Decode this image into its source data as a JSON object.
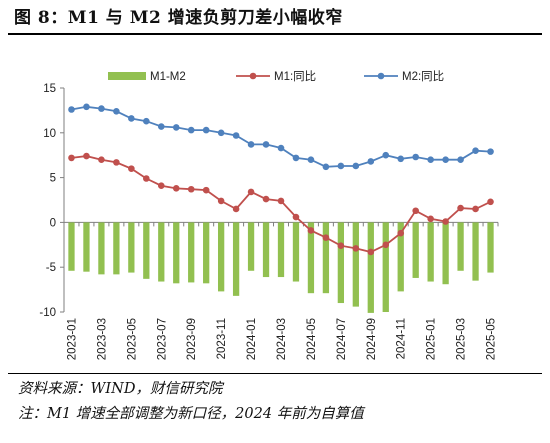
{
  "figure": {
    "title": "图 8：M1 与 M2 增速负剪刀差小幅收窄",
    "source": "资料来源：WIND，财信研究院",
    "footnote": "注：M1 增速全部调整为新口径，2024 年前为自算值"
  },
  "chart_data": {
    "type": "bar+line",
    "categories": [
      "2023-01",
      "2023-02",
      "2023-03",
      "2023-04",
      "2023-05",
      "2023-06",
      "2023-07",
      "2023-08",
      "2023-09",
      "2023-10",
      "2023-11",
      "2023-12",
      "2024-01",
      "2024-02",
      "2024-03",
      "2024-04",
      "2024-05",
      "2024-06",
      "2024-07",
      "2024-08",
      "2024-09",
      "2024-10",
      "2024-11",
      "2024-12",
      "2025-01",
      "2025-02",
      "2025-03",
      "2025-04",
      "2025-05"
    ],
    "tick_labels": [
      "2023-01",
      "2023-03",
      "2023-05",
      "2023-07",
      "2023-09",
      "2023-11",
      "2024-01",
      "2024-03",
      "2024-05",
      "2024-07",
      "2024-09",
      "2024-11",
      "2025-01",
      "2025-03",
      "2025-05"
    ],
    "series": [
      {
        "name": "M1-M2",
        "kind": "bar",
        "color": "#92c050",
        "values": [
          -5.4,
          -5.5,
          -5.8,
          -5.8,
          -5.6,
          -6.3,
          -6.6,
          -6.8,
          -6.7,
          -6.8,
          -7.7,
          -8.2,
          -5.4,
          -6.1,
          -6.1,
          -6.6,
          -7.9,
          -7.9,
          -9.0,
          -9.4,
          -10.1,
          -10.0,
          -7.7,
          -6.2,
          -6.6,
          -6.9,
          -5.4,
          -6.5,
          -5.6
        ]
      },
      {
        "name": "M1:同比",
        "kind": "line",
        "color": "#c0504d",
        "values": [
          7.2,
          7.4,
          7.0,
          6.7,
          6.0,
          4.9,
          4.1,
          3.8,
          3.7,
          3.6,
          2.4,
          1.5,
          3.4,
          2.6,
          2.4,
          0.6,
          -0.9,
          -1.7,
          -2.6,
          -2.9,
          -3.3,
          -2.5,
          -1.2,
          1.3,
          0.4,
          0.1,
          1.6,
          1.5,
          2.3
        ]
      },
      {
        "name": "M2:同比",
        "kind": "line",
        "color": "#4f81bd",
        "values": [
          12.6,
          12.9,
          12.7,
          12.4,
          11.6,
          11.3,
          10.7,
          10.6,
          10.3,
          10.3,
          10.0,
          9.7,
          8.7,
          8.7,
          8.3,
          7.2,
          7.0,
          6.2,
          6.3,
          6.3,
          6.8,
          7.5,
          7.1,
          7.3,
          7.0,
          7.0,
          7.0,
          8.0,
          7.9
        ]
      }
    ],
    "y_ticks": [
      15,
      10,
      5,
      0,
      -5,
      -10
    ],
    "ylim": [
      -10,
      15
    ],
    "grid": false,
    "legend_position": "top"
  }
}
